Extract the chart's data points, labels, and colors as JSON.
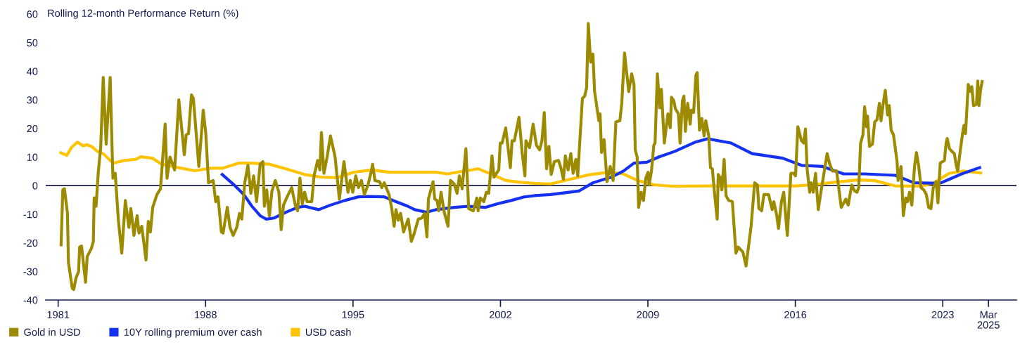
{
  "chart_data": {
    "type": "line",
    "ylabel": "Rolling 12-month Performance Return (%)",
    "series": [
      {
        "name": "Gold in USD",
        "color": "#9c8a00",
        "x": [
          1981.14,
          1981.22,
          1981.3,
          1981.44,
          1981.49,
          1981.67,
          1981.74,
          1981.85,
          1981.97,
          1982.02,
          1982.11,
          1982.3,
          1982.38,
          1982.58,
          1982.67,
          1982.71,
          1982.8,
          1982.91,
          1983.02,
          1983.14,
          1983.28,
          1983.47,
          1983.6,
          1983.71,
          1983.86,
          1984.02,
          1984.19,
          1984.36,
          1984.45,
          1984.6,
          1984.75,
          1984.84,
          1984.97,
          1985.17,
          1985.28,
          1985.38,
          1985.49,
          1985.69,
          1985.86,
          1985.92,
          1986.08,
          1986.17,
          1986.31,
          1986.53,
          1986.73,
          1986.99,
          1987.08,
          1987.19,
          1987.33,
          1987.42,
          1987.68,
          1987.89,
          1988.01,
          1988.14,
          1988.25,
          1988.36,
          1988.48,
          1988.59,
          1988.75,
          1988.83,
          1989.03,
          1989.16,
          1989.31,
          1989.48,
          1989.61,
          1989.72,
          1989.86,
          1990.01,
          1990.15,
          1990.28,
          1990.42,
          1990.59,
          1990.72,
          1990.79,
          1990.9,
          1991.03,
          1991.15,
          1991.31,
          1991.48,
          1991.59,
          1991.7,
          1991.87,
          1992.09,
          1992.26,
          1992.37,
          1992.48,
          1992.59,
          1992.7,
          1992.82,
          1993.04,
          1993.15,
          1993.32,
          1993.43,
          1993.5,
          1993.62,
          1993.76,
          1993.93,
          1994.15,
          1994.35,
          1994.57,
          1994.76,
          1994.87,
          1994.99,
          1995.13,
          1995.26,
          1995.4,
          1995.54,
          1995.71,
          1995.87,
          1995.93,
          1996.04,
          1996.26,
          1996.37,
          1996.48,
          1996.71,
          1996.84,
          1996.95,
          1997.04,
          1997.15,
          1997.26,
          1997.4,
          1997.62,
          1997.77,
          1997.91,
          1998.1,
          1998.27,
          1998.4,
          1998.51,
          1998.58,
          1998.8,
          1998.88,
          1998.99,
          1999.07,
          1999.18,
          1999.33,
          1999.51,
          1999.63,
          1999.8,
          1999.94,
          2000.05,
          2000.18,
          2000.36,
          2000.49,
          2000.71,
          2000.88,
          2000.94,
          2001.05,
          2001.21,
          2001.33,
          2001.44,
          2001.6,
          2001.69,
          2001.92,
          2001.99,
          2002.08,
          2002.25,
          2002.47,
          2002.55,
          2002.66,
          2002.88,
          2003.03,
          2003.16,
          2003.21,
          2003.38,
          2003.55,
          2003.71,
          2003.86,
          2003.97,
          2004.08,
          2004.19,
          2004.3,
          2004.41,
          2004.56,
          2004.76,
          2004.88,
          2004.99,
          2005.08,
          2005.21,
          2005.34,
          2005.45,
          2005.58,
          2005.67,
          2005.89,
          2006.0,
          2006.09,
          2006.17,
          2006.28,
          2006.39,
          2006.47,
          2006.67,
          2006.73,
          2006.8,
          2006.92,
          2007.06,
          2007.21,
          2007.35,
          2007.48,
          2007.67,
          2007.76,
          2007.89,
          2008.09,
          2008.23,
          2008.34,
          2008.4,
          2008.49,
          2008.56,
          2008.68,
          2008.79,
          2008.9,
          2009.01,
          2009.06,
          2009.17,
          2009.28,
          2009.34,
          2009.45,
          2009.56,
          2009.64,
          2009.78,
          2009.95,
          2010.06,
          2010.12,
          2010.23,
          2010.31,
          2010.45,
          2010.53,
          2010.64,
          2010.71,
          2010.78,
          2010.89,
          2011.01,
          2011.06,
          2011.17,
          2011.28,
          2011.34,
          2011.45,
          2011.56,
          2011.67,
          2011.75,
          2011.89,
          2011.97,
          2012.06,
          2012.17,
          2012.29,
          2012.34,
          2012.45,
          2012.51,
          2012.62,
          2012.71,
          2012.84,
          2013.01,
          2013.18,
          2013.29,
          2013.51,
          2013.66,
          2013.9,
          2014.07,
          2014.2,
          2014.27,
          2014.4,
          2014.51,
          2014.73,
          2014.9,
          2014.98,
          2015.12,
          2015.2,
          2015.34,
          2015.45,
          2015.62,
          2015.79,
          2015.93,
          2016.01,
          2016.12,
          2016.29,
          2016.4,
          2016.48,
          2016.56,
          2016.68,
          2016.75,
          2016.85,
          2016.96,
          2017.09,
          2017.24,
          2017.51,
          2017.62,
          2017.76,
          2017.96,
          2018.18,
          2018.4,
          2018.51,
          2018.68,
          2018.82,
          2018.93,
          2019.01,
          2019.1,
          2019.21,
          2019.29,
          2019.38,
          2019.43,
          2019.52,
          2019.66,
          2019.77,
          2019.88,
          2019.99,
          2020.07,
          2020.16,
          2020.27,
          2020.38,
          2020.46,
          2020.55,
          2020.66,
          2020.83,
          2020.88,
          2021.02,
          2021.13,
          2021.24,
          2021.33,
          2021.42,
          2021.53,
          2021.66,
          2021.75,
          2021.86,
          2021.97,
          2022.1,
          2022.22,
          2022.33,
          2022.44,
          2022.55,
          2022.69,
          2022.77,
          2022.88,
          2023.08,
          2023.16,
          2023.21,
          2023.32,
          2023.43,
          2023.55,
          2023.63,
          2023.71,
          2023.82,
          2023.94,
          2024.01,
          2024.08,
          2024.21,
          2024.32,
          2024.38,
          2024.46,
          2024.6,
          2024.66,
          2024.72,
          2024.8,
          2024.87
        ],
        "values": [
          -20.7,
          -1.5,
          -1.1,
          -9.6,
          -26.9,
          -35.9,
          -36.3,
          -32.2,
          -30.1,
          -21.5,
          -21.1,
          -33.8,
          -24.8,
          -21.9,
          -19.5,
          -4.3,
          -7.2,
          5.1,
          13.3,
          37.8,
          14.5,
          37.8,
          2.6,
          4.3,
          -12.1,
          -23.6,
          -5.2,
          -14.6,
          -8.0,
          -17.4,
          -10.5,
          -16.6,
          -14.2,
          -26.0,
          -12.5,
          -16.2,
          -7.6,
          -3.1,
          -1.1,
          5.1,
          21.5,
          2.6,
          10.0,
          5.5,
          30.0,
          10.8,
          17.8,
          18.2,
          31.7,
          30.5,
          6.7,
          26.4,
          18.2,
          1.0,
          1.4,
          1.8,
          -5.6,
          -3.9,
          -16.2,
          -16.6,
          -7.6,
          -14.6,
          -17.4,
          -14.6,
          -9.7,
          -11.7,
          1.0,
          7.1,
          -2.7,
          3.4,
          -5.6,
          7.5,
          8.4,
          -7.2,
          -1.5,
          -10.5,
          -1.9,
          1.8,
          -2.3,
          -15.4,
          -6.8,
          -3.9,
          -0.7,
          -6.8,
          -8.8,
          2.6,
          -6.4,
          -2.3,
          -5.6,
          -5.6,
          3.4,
          8.8,
          5.5,
          18.6,
          4.3,
          9.6,
          17.4,
          10.0,
          -4.7,
          8.4,
          -2.3,
          1.8,
          -2.3,
          3.4,
          -0.7,
          1.8,
          -3.1,
          0.2,
          5.1,
          7.5,
          1.8,
          1.4,
          -0.7,
          1.0,
          -3.1,
          -8.0,
          -14.2,
          -8.4,
          -12.1,
          -9.7,
          -16.2,
          -11.7,
          -19.5,
          -16.6,
          -11.7,
          -11.3,
          -9.7,
          -17.9,
          -4.7,
          1.4,
          -4.7,
          -5.2,
          -8.8,
          -2.3,
          -9.3,
          -14.2,
          1.8,
          0.6,
          -2.7,
          3.4,
          -1.1,
          12.9,
          -8.0,
          -8.8,
          -4.3,
          -8.8,
          -4.3,
          -5.6,
          -2.3,
          -2.7,
          10.4,
          3.0,
          5.5,
          14.9,
          14.9,
          20.2,
          6.3,
          15.7,
          15.7,
          23.9,
          11.6,
          3.4,
          15.7,
          13.3,
          21.5,
          14.1,
          12.5,
          15.7,
          25.6,
          5.9,
          13.7,
          3.9,
          8.4,
          8.8,
          5.9,
          2.2,
          10.4,
          5.5,
          11.2,
          4.3,
          9.2,
          3.4,
          30.5,
          31.3,
          34.2,
          56.7,
          43.2,
          46.0,
          32.9,
          22.7,
          25.1,
          11.6,
          16.1,
          1.4,
          6.7,
          1.8,
          22.3,
          22.7,
          28.8,
          46.4,
          32.9,
          39.1,
          35.4,
          12.5,
          10.0,
          -7.6,
          -2.3,
          -5.2,
          2.6,
          4.7,
          0.2,
          5.1,
          14.1,
          14.9,
          39.1,
          27.2,
          33.7,
          14.9,
          25.1,
          20.2,
          30.9,
          29.7,
          26.8,
          25.1,
          14.9,
          29.7,
          31.3,
          19.0,
          28.8,
          21.5,
          26.4,
          25.6,
          38.6,
          39.5,
          19.4,
          23.5,
          17.4,
          22.7,
          17.4,
          6.3,
          5.9,
          -3.1,
          -11.7,
          3.9,
          2.6,
          -1.5,
          9.2,
          -3.5,
          -5.2,
          -5.6,
          -23.6,
          -21.5,
          -23.2,
          -28.1,
          -14.2,
          1.0,
          0.2,
          -8.0,
          -8.8,
          -3.1,
          -3.1,
          -8.4,
          -5.6,
          -10.5,
          -15.0,
          -5.6,
          -2.3,
          -17.4,
          4.3,
          4.3,
          3.4,
          20.6,
          15.7,
          14.9,
          19.8,
          5.9,
          -2.3,
          1.0,
          -2.3,
          4.3,
          -8.4,
          -1.1,
          11.2,
          7.9,
          5.1,
          5.1,
          -7.6,
          -4.7,
          -6.8,
          0.2,
          -1.9,
          -2.3,
          -0.7,
          14.9,
          17.8,
          27.6,
          20.6,
          24.3,
          13.7,
          14.5,
          22.3,
          23.1,
          28.8,
          22.7,
          28.0,
          33.3,
          24.7,
          28.0,
          19.4,
          17.8,
          8.4,
          1.8,
          6.7,
          -10.5,
          -4.3,
          -5.6,
          -2.3,
          -6.8,
          6.7,
          11.6,
          6.7,
          -0.7,
          -1.5,
          -3.1,
          -7.6,
          -8.0,
          -0.7,
          1.4,
          -6.0,
          7.9,
          8.8,
          14.9,
          16.5,
          12.9,
          12.0,
          11.2,
          7.5,
          5.1,
          11.6,
          18.2,
          21.1,
          18.2,
          35.4,
          32.9,
          34.6,
          28.0,
          28.4,
          36.6,
          28.0,
          33.7,
          36.4
        ]
      },
      {
        "name": "10Y rolling premium over cash",
        "color": "#1430f0",
        "x": [
          1988.79,
          1989.36,
          1989.81,
          1990.2,
          1990.59,
          1990.87,
          1991.26,
          1991.81,
          1992.37,
          1992.7,
          1993.37,
          1993.93,
          1994.6,
          1995.26,
          1995.71,
          1996.48,
          1997.04,
          1997.6,
          1997.93,
          1998.49,
          1998.93,
          1999.82,
          2000.49,
          2001.27,
          2001.83,
          2002.5,
          2003.16,
          2003.61,
          2004.38,
          2005.72,
          2006.39,
          2007.28,
          2007.84,
          2008.34,
          2008.95,
          2009.51,
          2010.28,
          2011.28,
          2011.84,
          2012.95,
          2013.95,
          2015.4,
          2016.29,
          2017.29,
          2018.29,
          2018.96,
          2019.3,
          2020.74,
          2021.63,
          2022.86,
          2023.3,
          2023.97,
          2024.75
        ],
        "values": [
          3.9,
          0.2,
          -3.1,
          -7.2,
          -10.5,
          -11.7,
          -11.3,
          -9.3,
          -7.6,
          -7.2,
          -8.4,
          -6.8,
          -5.2,
          -3.9,
          -3.8,
          -3.9,
          -5.6,
          -7.2,
          -8.4,
          -9.3,
          -8.4,
          -7.6,
          -7.2,
          -7.6,
          -6.4,
          -5.2,
          -3.9,
          -3.5,
          -3.1,
          -1.9,
          1.0,
          3.0,
          5.1,
          7.9,
          8.2,
          10.0,
          12.0,
          15.3,
          16.4,
          14.9,
          11.2,
          9.6,
          7.1,
          6.7,
          4.1,
          4.1,
          4.1,
          3.6,
          1.0,
          0.8,
          2.2,
          4.3,
          6.3
        ]
      },
      {
        "name": "USD cash",
        "color": "#ffc400",
        "x": [
          1981.13,
          1981.41,
          1981.63,
          1981.91,
          1982.19,
          1982.36,
          1982.58,
          1982.86,
          1983.14,
          1983.47,
          1983.64,
          1984.14,
          1984.69,
          1984.92,
          1985.47,
          1985.92,
          1986.69,
          1987.48,
          1988.25,
          1988.81,
          1989.59,
          1990.15,
          1991.03,
          1991.81,
          1992.7,
          1993.48,
          1994.26,
          1995.04,
          1995.93,
          1996.71,
          1997.82,
          1998.93,
          1999.49,
          2000.27,
          2000.94,
          2001.6,
          2002.27,
          2002.94,
          2003.61,
          2004.38,
          2005.28,
          2006.28,
          2007.17,
          2007.84,
          2008.51,
          2009.29,
          2010.17,
          2012.0,
          2014.0,
          2016.0,
          2016.85,
          2017.85,
          2018.96,
          2019.74,
          2020.74,
          2021.97,
          2022.53,
          2023.3,
          2023.97,
          2024.8
        ],
        "values": [
          11.5,
          10.6,
          13.3,
          15.2,
          13.9,
          14.3,
          13.7,
          12.0,
          11.2,
          8.8,
          7.9,
          8.8,
          9.2,
          10.1,
          9.6,
          7.5,
          6.3,
          5.2,
          6.1,
          6.1,
          7.9,
          7.9,
          7.5,
          5.9,
          3.9,
          3.0,
          2.8,
          4.7,
          5.5,
          4.7,
          4.7,
          4.7,
          4.1,
          5.1,
          5.9,
          3.9,
          1.8,
          1.2,
          0.8,
          0.6,
          2.2,
          3.9,
          4.7,
          4.1,
          1.8,
          0.3,
          -0.2,
          -0.1,
          -0.1,
          -0.1,
          0.3,
          1.2,
          2.0,
          1.8,
          -0.1,
          -0.2,
          0.8,
          4.3,
          5.1,
          4.4
        ]
      }
    ],
    "xlim": [
      1980.41,
      2026.5
    ],
    "xticks": [
      1981,
      1988,
      1995,
      2002,
      2009,
      2016,
      2023,
      {
        "value": 2025.17,
        "label": "Mar\n2025"
      }
    ],
    "ylim": [
      -40,
      60
    ],
    "yticks": [
      -40,
      -30,
      -20,
      -10,
      0,
      10,
      20,
      30,
      40,
      50,
      60
    ],
    "ref_lines": [
      {
        "axis": "y",
        "value": 0,
        "color": "#141b4d"
      }
    ],
    "grid": false,
    "legend": "bottom left",
    "marker": "none",
    "line_style": "solid"
  }
}
